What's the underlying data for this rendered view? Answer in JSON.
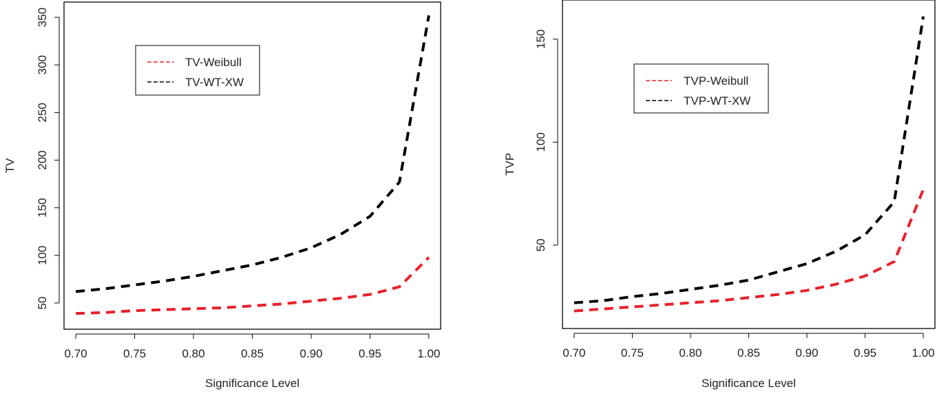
{
  "chart_data": [
    {
      "type": "line",
      "title": "",
      "xlabel": "Significance Level",
      "ylabel": "TV",
      "xlim": [
        0.69,
        1.01
      ],
      "ylim": [
        22.5,
        366
      ],
      "x_ticks": [
        "0.70",
        "0.75",
        "0.80",
        "0.85",
        "0.90",
        "0.95",
        "1.00"
      ],
      "y_ticks": [
        "50",
        "100",
        "150",
        "200",
        "250",
        "300",
        "350"
      ],
      "legend_placement": "top-left",
      "x": [
        0.7,
        0.725,
        0.75,
        0.775,
        0.8,
        0.825,
        0.85,
        0.875,
        0.9,
        0.925,
        0.95,
        0.975,
        1.0
      ],
      "series": [
        {
          "name": "TV-Weibull",
          "color": "#e8202a",
          "values": [
            39,
            40,
            42,
            43,
            44,
            45,
            47,
            49,
            52,
            55,
            59,
            67,
            98
          ]
        },
        {
          "name": "TV-WT-XW",
          "color": "#000000",
          "values": [
            62,
            65,
            69,
            73,
            78,
            84,
            90,
            98,
            108,
            122,
            141,
            177,
            352
          ]
        }
      ]
    },
    {
      "type": "line",
      "title": "",
      "xlabel": "Significance Level",
      "ylabel": "TVP",
      "xlim": [
        0.69,
        1.01
      ],
      "ylim": [
        9.5,
        169
      ],
      "x_ticks": [
        "0.70",
        "0.75",
        "0.80",
        "0.85",
        "0.90",
        "0.95",
        "1.00"
      ],
      "y_ticks": [
        "50",
        "100",
        "150"
      ],
      "legend_placement": "top-center",
      "x": [
        0.7,
        0.725,
        0.75,
        0.775,
        0.8,
        0.825,
        0.85,
        0.875,
        0.9,
        0.925,
        0.95,
        0.975,
        1.0
      ],
      "series": [
        {
          "name": "TVP-Weibull",
          "color": "#e8202a",
          "values": [
            18,
            19,
            20,
            21,
            22,
            23,
            24.5,
            26,
            28,
            31,
            35,
            42,
            77
          ]
        },
        {
          "name": "TVP-WT-XW",
          "color": "#000000",
          "values": [
            22,
            23,
            25,
            26.5,
            28.5,
            30.5,
            33,
            37,
            41,
            47,
            55,
            71,
            161
          ]
        }
      ]
    }
  ]
}
